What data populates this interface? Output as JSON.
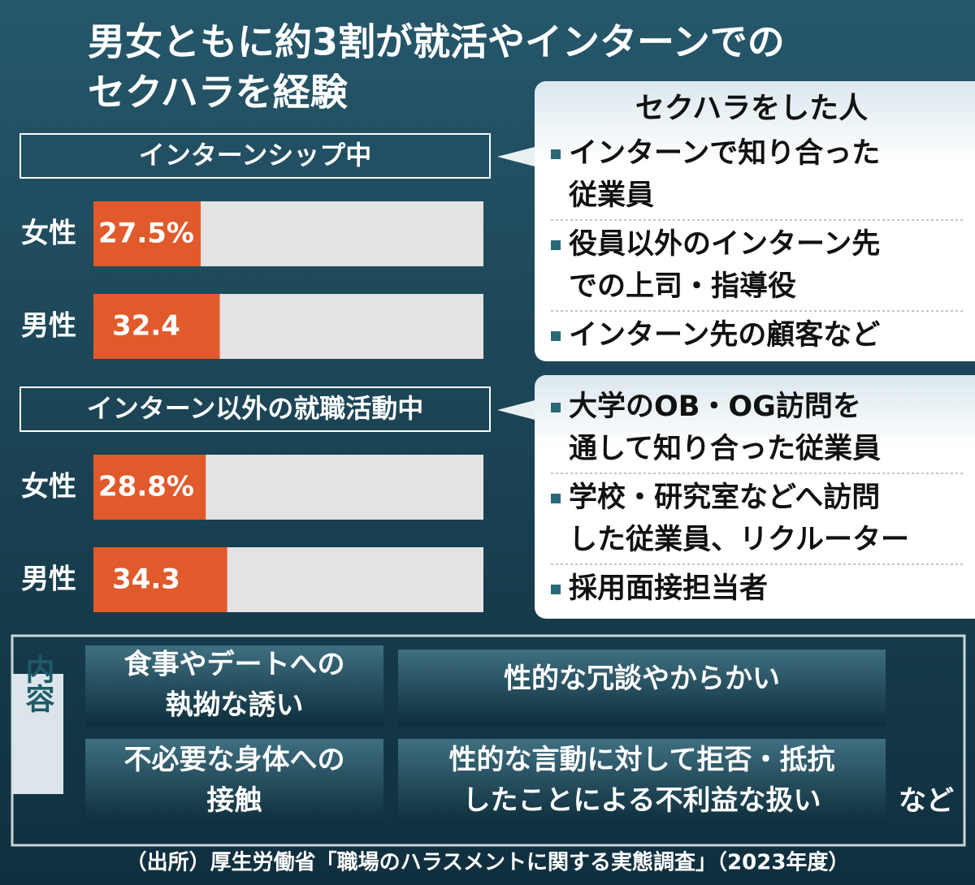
{
  "title_lines": [
    "男女ともに約3割が就活やインターンでの",
    "セクハラを経験"
  ],
  "chart_data": [
    {
      "type": "bar",
      "title": "インターンシップ中",
      "categories": [
        "女性",
        "男性"
      ],
      "values": [
        27.5,
        32.4
      ],
      "value_labels": [
        "27.5%",
        "32.4"
      ],
      "color": "#e15a2b",
      "xlim": [
        0,
        100
      ]
    },
    {
      "type": "bar",
      "title": "インターン以外の就職活動中",
      "categories": [
        "女性",
        "男性"
      ],
      "values": [
        28.8,
        34.3
      ],
      "value_labels": [
        "28.8%",
        "34.3"
      ],
      "color": "#e15a2b",
      "xlim": [
        0,
        100
      ]
    }
  ],
  "perpetrator_heading": "セクハラをした人",
  "perpetrators": [
    [
      [
        "インターンで知り合った",
        "従業員"
      ],
      [
        "役員以外のインターン先",
        "での上司・指導役"
      ],
      [
        "インターン先の顧客など"
      ]
    ],
    [
      [
        "大学のOB・OG訪問を",
        "通して知り合った従業員"
      ],
      [
        "学校・研究室などへ訪問",
        "した従業員、リクルーター"
      ],
      [
        "採用面接担当者"
      ]
    ]
  ],
  "content_label": "内容",
  "contents": [
    [
      "食事やデートへの",
      "執拗な誘い"
    ],
    [
      "性的な冗談やからかい"
    ],
    [
      "不必要な身体への",
      "接触"
    ],
    [
      "性的な言動に対して拒否・抵抗",
      "したことによる不利益な扱い"
    ]
  ],
  "content_suffix": "など",
  "source": "（出所）厚生労働省「職場のハラスメントに関する実態調査」（2023年度）"
}
